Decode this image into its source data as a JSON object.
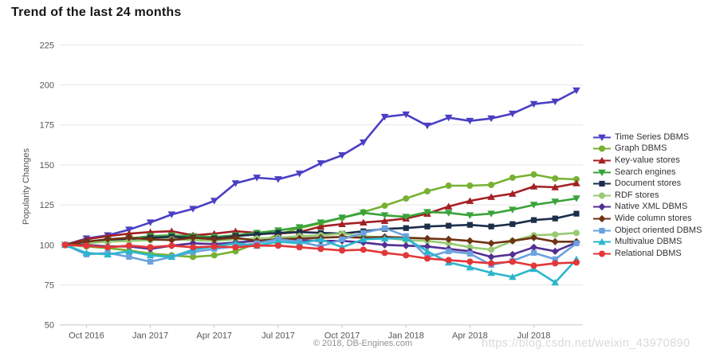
{
  "page": {
    "title": "Trend of the last 24 months",
    "footer": "© 2018, DB-Engines.com",
    "watermark": "https://blog.csdn.net/weixin_43970890"
  },
  "chart_data": {
    "type": "line",
    "title": "Trend of the last 24 months",
    "xlabel": "",
    "ylabel": "Popularity Changes",
    "ylim": [
      50,
      225
    ],
    "y_ticks": [
      50,
      75,
      100,
      125,
      150,
      175,
      200,
      225
    ],
    "grid": true,
    "legend_position": "right",
    "x": [
      "Sep 2016",
      "Oct 2016",
      "Nov 2016",
      "Dec 2016",
      "Jan 2017",
      "Feb 2017",
      "Mar 2017",
      "Apr 2017",
      "May 2017",
      "Jun 2017",
      "Jul 2017",
      "Aug 2017",
      "Sep 2017",
      "Oct 2017",
      "Nov 2017",
      "Dec 2017",
      "Jan 2018",
      "Feb 2018",
      "Mar 2018",
      "Apr 2018",
      "May 2018",
      "Jun 2018",
      "Jul 2018",
      "Aug 2018",
      "Sep 2018"
    ],
    "x_tick_labels": [
      "Oct 2016",
      "Jan 2017",
      "Apr 2017",
      "Jul 2017",
      "Oct 2017",
      "Jan 2018",
      "Apr 2018",
      "Jul 2018"
    ],
    "x_tick_month_indices": [
      1,
      4,
      7,
      10,
      13,
      16,
      19,
      22
    ],
    "series": [
      {
        "name": "Time Series DBMS",
        "color": "#4a3fc4",
        "marker": "tri-down",
        "values": [
          100,
          104,
          106,
          109.5,
          114,
          119,
          122.5,
          127.5,
          138.5,
          142,
          141,
          144.5,
          151,
          156,
          164,
          180,
          181.5,
          174.5,
          179.5,
          177.5,
          179,
          182,
          188,
          189.5,
          196.5
        ]
      },
      {
        "name": "Graph DBMS",
        "color": "#77b133",
        "marker": "circle",
        "values": [
          100,
          99,
          98,
          96.5,
          94.5,
          93.5,
          92.5,
          93.5,
          96,
          101,
          106.5,
          110.5,
          113.5,
          117,
          120.5,
          124.5,
          129,
          133.5,
          137,
          137,
          137.5,
          142,
          144,
          141.5,
          141
        ]
      },
      {
        "name": "Key-value stores",
        "color": "#a32024",
        "marker": "tri-up",
        "values": [
          100,
          103.5,
          105.5,
          107,
          108,
          108.5,
          106,
          107,
          108.5,
          107.5,
          107,
          108,
          111.5,
          113,
          114,
          115,
          116.5,
          119.5,
          124,
          127.5,
          130,
          132,
          136.5,
          136,
          138.5
        ]
      },
      {
        "name": "Search engines",
        "color": "#39a33b",
        "marker": "tri-down",
        "values": [
          100,
          101.5,
          103,
          104,
          105.5,
          106,
          105.5,
          105,
          106,
          107.5,
          109,
          111,
          114,
          117,
          120,
          118.5,
          117.5,
          120.5,
          120,
          118.5,
          119.5,
          122,
          125,
          127,
          129
        ]
      },
      {
        "name": "Document stores",
        "color": "#1c2f4a",
        "marker": "square",
        "values": [
          100,
          101.5,
          102.5,
          103.5,
          104.5,
          105,
          104.5,
          104,
          105.5,
          106.5,
          107.5,
          108,
          107.5,
          107,
          108.5,
          110,
          110.5,
          111.5,
          112,
          112.5,
          111.5,
          113,
          115.5,
          116.5,
          119.5
        ]
      },
      {
        "name": "RDF stores",
        "color": "#98ca74",
        "marker": "circle",
        "values": [
          100,
          101,
          102,
          102.5,
          103,
          103.5,
          103,
          102.5,
          103.5,
          104,
          104.5,
          105.5,
          106,
          107,
          105.5,
          104.5,
          103,
          102.5,
          101,
          98.5,
          97,
          102.5,
          106,
          106.5,
          107.5
        ]
      },
      {
        "name": "Native XML DBMS",
        "color": "#532f93",
        "marker": "diamond",
        "values": [
          100,
          100,
          99,
          99,
          97.5,
          99.5,
          101,
          100.5,
          101.5,
          102.5,
          103.5,
          103,
          102.5,
          102.5,
          101.5,
          100,
          99.5,
          99,
          97.5,
          96,
          92.5,
          94,
          98.5,
          96,
          101.5
        ]
      },
      {
        "name": "Wide column stores",
        "color": "#6f3315",
        "marker": "diamond",
        "values": [
          100,
          102,
          103.5,
          104.5,
          103.5,
          103,
          104.5,
          103.5,
          104.5,
          102.5,
          103.5,
          104,
          104.5,
          105,
          104.5,
          105,
          104.5,
          104,
          103.5,
          102.5,
          101,
          102.5,
          104.5,
          102,
          102
        ]
      },
      {
        "name": "Object oriented DBMS",
        "color": "#6ba1de",
        "marker": "square",
        "values": [
          100,
          94,
          95,
          92.5,
          89.5,
          92.5,
          95.5,
          97.5,
          99,
          101,
          103.5,
          102,
          99,
          103.5,
          107.5,
          110.5,
          105.5,
          92.5,
          96,
          94.5,
          87.5,
          90,
          95,
          91,
          101
        ]
      },
      {
        "name": "Multivalue DBMS",
        "color": "#2cb6cc",
        "marker": "tri-up",
        "values": [
          100,
          95,
          94,
          96,
          93.5,
          92.5,
          97,
          99,
          101,
          99.5,
          102,
          101,
          103.5,
          98.5,
          103.5,
          104,
          104,
          96,
          89,
          86,
          82.5,
          80,
          85,
          76.5,
          91
        ]
      },
      {
        "name": "Relational DBMS",
        "color": "#e33739",
        "marker": "circle",
        "values": [
          100,
          99.5,
          98.5,
          99.5,
          98.5,
          99.5,
          98.5,
          99,
          98.5,
          99.5,
          99.5,
          98.5,
          97.5,
          96.5,
          97,
          95,
          93.5,
          91.5,
          90.5,
          89.5,
          88.5,
          89.5,
          87,
          88.5,
          89
        ]
      }
    ]
  }
}
